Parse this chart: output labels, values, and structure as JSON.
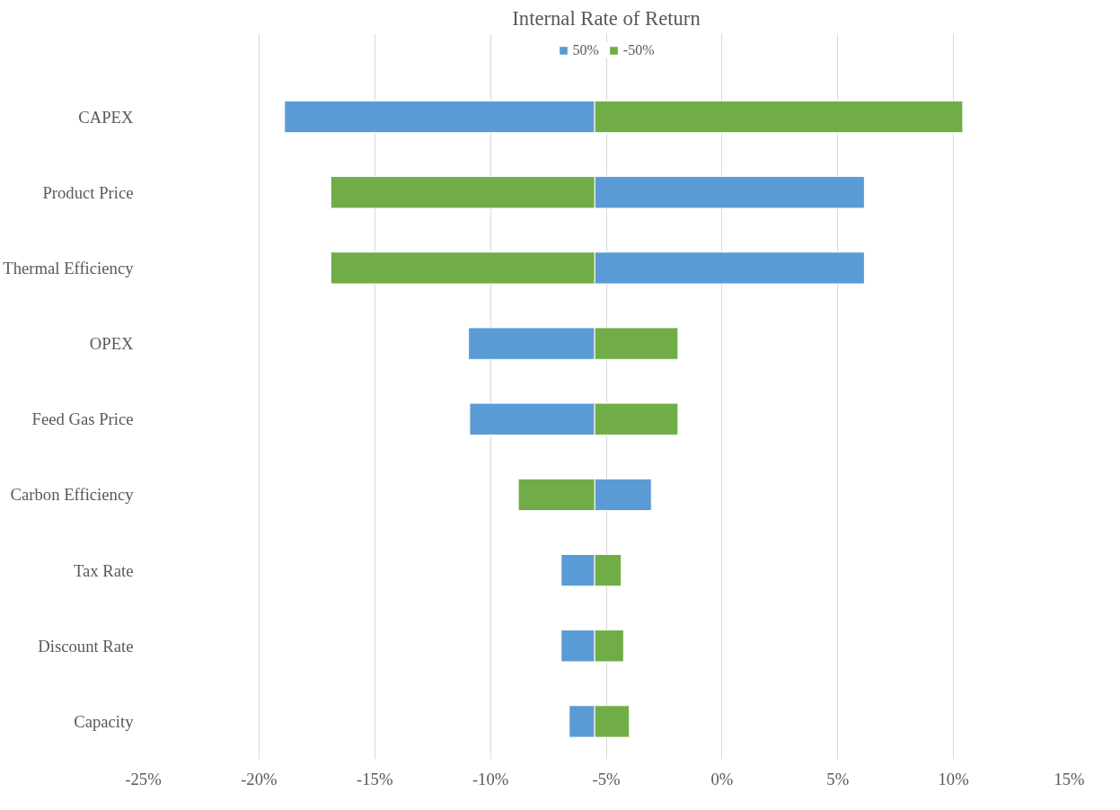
{
  "chart_data": {
    "type": "bar",
    "orientation": "horizontal",
    "title": "Internal Rate of Return",
    "categories": [
      "CAPEX",
      "Product Price",
      "Thermal Efficiency",
      "OPEX",
      "Feed Gas Price",
      "Carbon Efficiency",
      "Tax Rate",
      "Discount Rate",
      "Capacity"
    ],
    "series": [
      {
        "name": "50%",
        "color": "#5b9bd5",
        "base": [
          -5.5,
          -5.5,
          -5.5,
          -5.5,
          -5.5,
          -5.5,
          -5.5,
          -5.5,
          -5.5
        ],
        "values": [
          -13.4,
          11.65,
          11.65,
          -5.45,
          -5.4,
          2.45,
          -1.45,
          -1.45,
          -1.1
        ]
      },
      {
        "name": "-50%",
        "color": "#70ad47",
        "base": [
          -5.5,
          -5.5,
          -5.5,
          -5.5,
          -5.5,
          -5.5,
          -5.5,
          -5.5,
          -5.5
        ],
        "values": [
          15.9,
          -11.4,
          -11.4,
          3.6,
          3.6,
          -3.3,
          1.15,
          1.25,
          1.5
        ]
      }
    ],
    "xlim": [
      -25,
      15
    ],
    "xticks": [
      {
        "value": -25,
        "label": "-25%"
      },
      {
        "value": -20,
        "label": "-20%"
      },
      {
        "value": -15,
        "label": "-15%"
      },
      {
        "value": -10,
        "label": "-10%"
      },
      {
        "value": -5,
        "label": "-5%"
      },
      {
        "value": 0,
        "label": "0%"
      },
      {
        "value": 5,
        "label": "5%"
      },
      {
        "value": 10,
        "label": "10%"
      },
      {
        "value": 15,
        "label": "15%"
      }
    ],
    "grid": "x",
    "legend": "top"
  }
}
